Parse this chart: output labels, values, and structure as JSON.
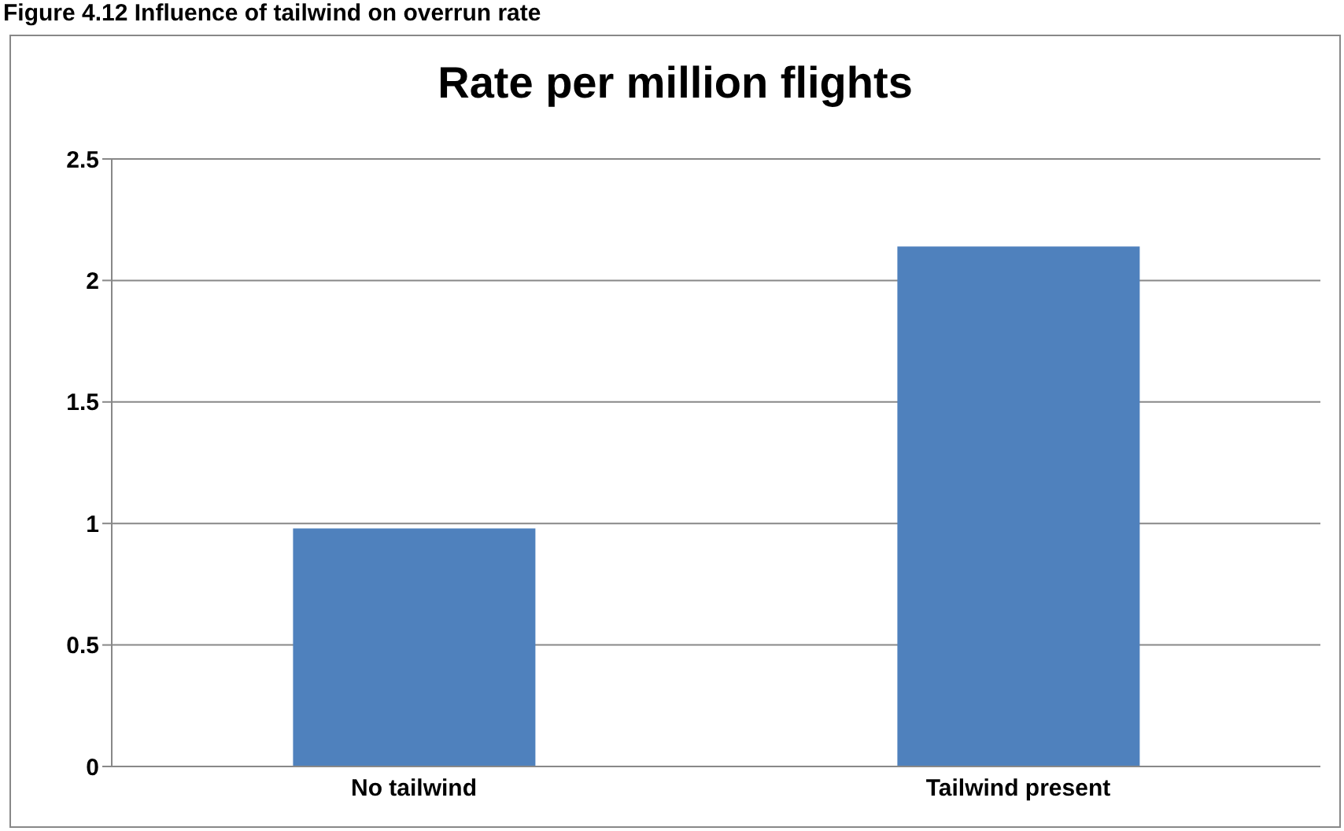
{
  "chart_data": {
    "type": "bar",
    "title": "Rate per million flights",
    "annotations": [
      "Figure 4.12 Influence of tailwind on overrun rate"
    ],
    "categories": [
      "No tailwind",
      "Tailwind present"
    ],
    "values": [
      0.98,
      2.14
    ],
    "color": "#4f81bd",
    "ylim": [
      0,
      2.5
    ],
    "yticks": [
      0,
      0.5,
      1,
      1.5,
      2,
      2.5
    ],
    "grid": "y"
  }
}
